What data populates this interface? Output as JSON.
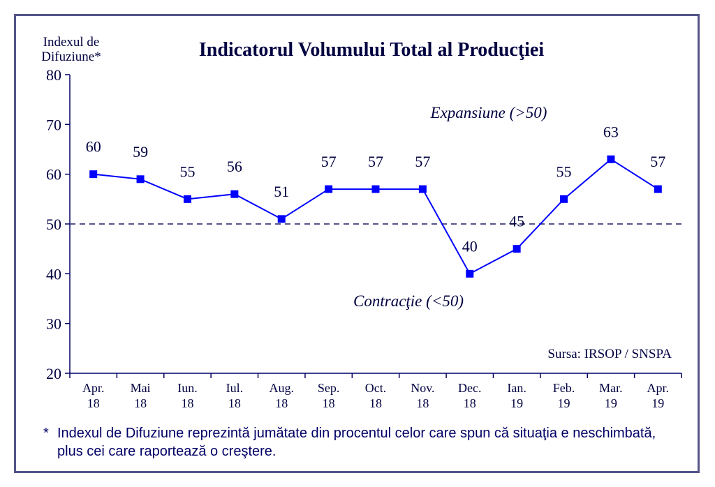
{
  "chart_data": {
    "type": "line",
    "title": "Indicatorul Volumului Total al Producţiei",
    "ylabel": "Indexul de Difuziune*",
    "ylabel_lines": [
      "Indexul de",
      "Difuziune*"
    ],
    "ylim": [
      20,
      80
    ],
    "y_ticks": [
      "20",
      "30",
      "40",
      "50",
      "60",
      "70",
      "80"
    ],
    "categories": [
      [
        "Apr.",
        "18"
      ],
      [
        "Mai",
        "18"
      ],
      [
        "Iun.",
        "18"
      ],
      [
        "Iul.",
        "18"
      ],
      [
        "Aug.",
        "18"
      ],
      [
        "Sep.",
        "18"
      ],
      [
        "Oct.",
        "18"
      ],
      [
        "Nov.",
        "18"
      ],
      [
        "Dec.",
        "18"
      ],
      [
        "Ian.",
        "19"
      ],
      [
        "Feb.",
        "19"
      ],
      [
        "Mar.",
        "19"
      ],
      [
        "Apr.",
        "19"
      ]
    ],
    "series": [
      {
        "values": [
          60,
          59,
          55,
          56,
          51,
          57,
          57,
          57,
          40,
          45,
          55,
          63,
          57
        ]
      }
    ],
    "data_labels": [
      "60",
      "59",
      "55",
      "56",
      "51",
      "57",
      "57",
      "57",
      "40",
      "45",
      "55",
      "63",
      "57"
    ],
    "reference_line": {
      "value": 50,
      "style": "dashed"
    },
    "annotations": {
      "expansion": "Expansiune (>50)",
      "contraction": "Contracţie (<50)",
      "source": "Sursa: IRSOP / SNSPA"
    },
    "grid": false,
    "legend": "none"
  },
  "footnote": {
    "star": "*",
    "text": "Indexul de Difuziune reprezintă jumătate din procentul celor care spun că situaţia e neschimbată, plus cei care raportează o creştere."
  },
  "colors": {
    "line": "#0000ff",
    "axis": "#000066",
    "text": "#000040",
    "frame": "#55558a",
    "reference": "#55558a"
  }
}
